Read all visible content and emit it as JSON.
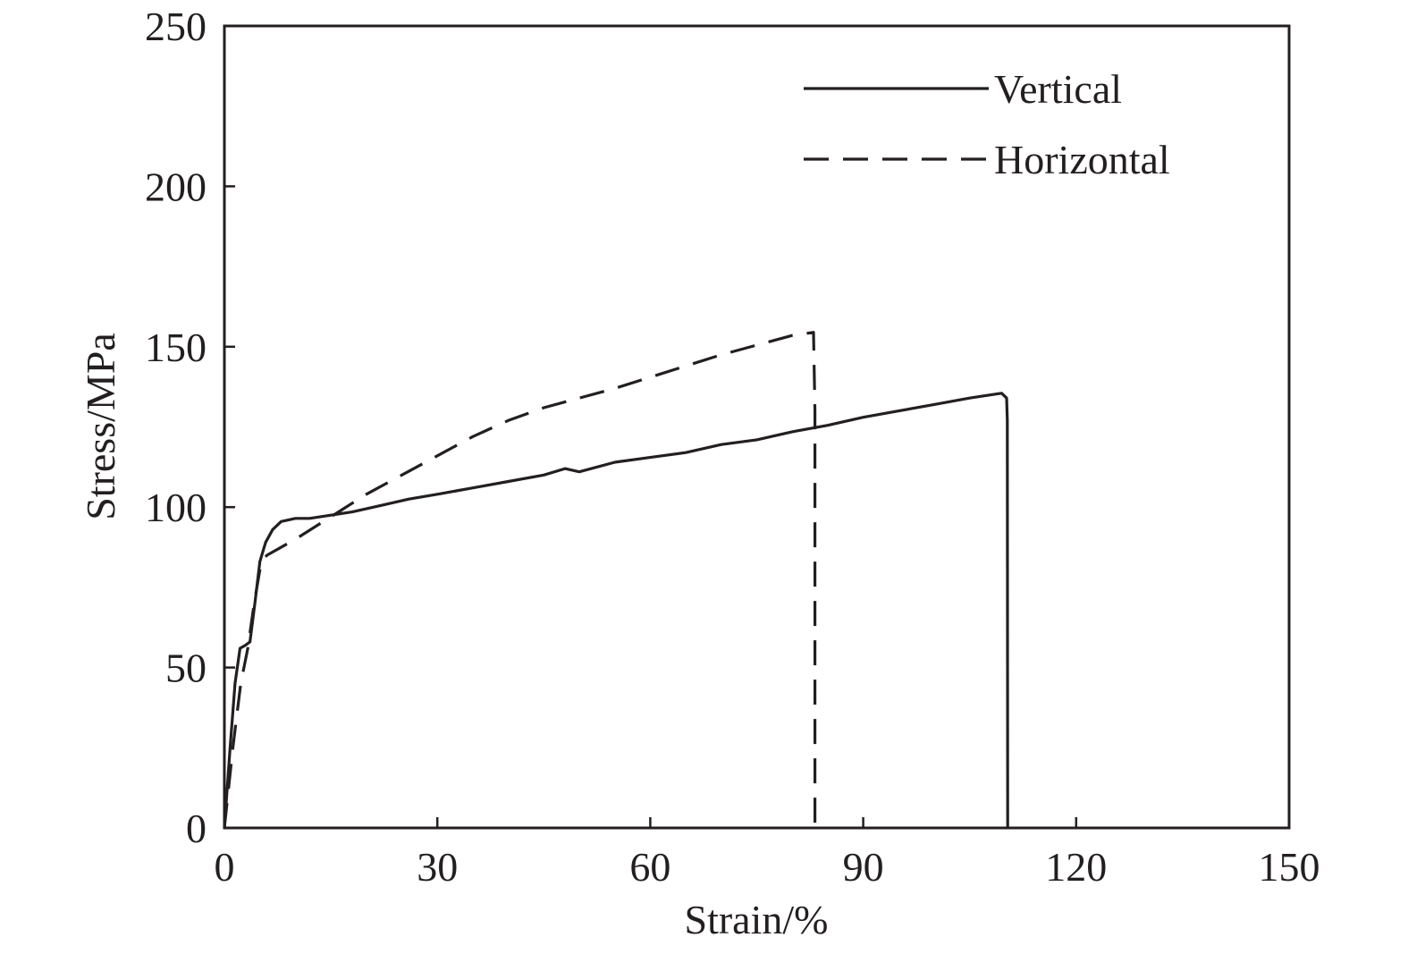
{
  "chart_data": {
    "type": "line",
    "title": "",
    "xlabel": "Strain/%",
    "ylabel": "Stress/MPa",
    "xlim": [
      0,
      150
    ],
    "ylim": [
      0,
      250
    ],
    "xticks": [
      0,
      30,
      60,
      90,
      120,
      150
    ],
    "yticks": [
      0,
      50,
      100,
      150,
      200,
      250
    ],
    "grid": false,
    "legend_position": "top-right",
    "series": [
      {
        "name": "Vertical",
        "style": "solid",
        "color": "#231f20",
        "points": [
          [
            0,
            0
          ],
          [
            0.8,
            25
          ],
          [
            1.5,
            45
          ],
          [
            2.2,
            56
          ],
          [
            3.0,
            57
          ],
          [
            3.6,
            58
          ],
          [
            4.3,
            70
          ],
          [
            5.0,
            83
          ],
          [
            5.8,
            89
          ],
          [
            6.8,
            93
          ],
          [
            8.0,
            95.5
          ],
          [
            10.0,
            96.5
          ],
          [
            12.0,
            96.5
          ],
          [
            15.0,
            97.5
          ],
          [
            18.0,
            98.5
          ],
          [
            22.0,
            100.5
          ],
          [
            26.0,
            102.5
          ],
          [
            30.0,
            104
          ],
          [
            35.0,
            106
          ],
          [
            40.0,
            108
          ],
          [
            45.0,
            110
          ],
          [
            48.0,
            112
          ],
          [
            50.0,
            111
          ],
          [
            55.0,
            114
          ],
          [
            60.0,
            115.5
          ],
          [
            65.0,
            117
          ],
          [
            70.0,
            119.5
          ],
          [
            75.0,
            121
          ],
          [
            80.0,
            123.5
          ],
          [
            85.0,
            125.5
          ],
          [
            90.0,
            128
          ],
          [
            95.0,
            130
          ],
          [
            100.0,
            132
          ],
          [
            105.0,
            134
          ],
          [
            108.0,
            135
          ],
          [
            109.5,
            135.5
          ],
          [
            110.2,
            134
          ],
          [
            110.3,
            127
          ],
          [
            110.35,
            0
          ]
        ]
      },
      {
        "name": "Horizontal",
        "style": "dashed",
        "color": "#231f20",
        "points": [
          [
            0,
            0
          ],
          [
            1.2,
            25
          ],
          [
            2.3,
            45
          ],
          [
            3.3,
            56
          ],
          [
            4.2,
            70
          ],
          [
            5.2,
            83
          ],
          [
            6.0,
            85
          ],
          [
            10.0,
            90
          ],
          [
            15.0,
            97
          ],
          [
            20.0,
            104
          ],
          [
            25.0,
            110
          ],
          [
            30.0,
            116
          ],
          [
            35.0,
            122
          ],
          [
            40.0,
            127
          ],
          [
            45.0,
            131
          ],
          [
            50.0,
            134
          ],
          [
            55.0,
            137
          ],
          [
            60.0,
            140.5
          ],
          [
            65.0,
            144
          ],
          [
            70.0,
            147.5
          ],
          [
            75.0,
            150.5
          ],
          [
            80.0,
            153.5
          ],
          [
            83.0,
            154.5
          ],
          [
            83.2,
            130
          ],
          [
            83.2,
            0
          ]
        ]
      }
    ]
  }
}
